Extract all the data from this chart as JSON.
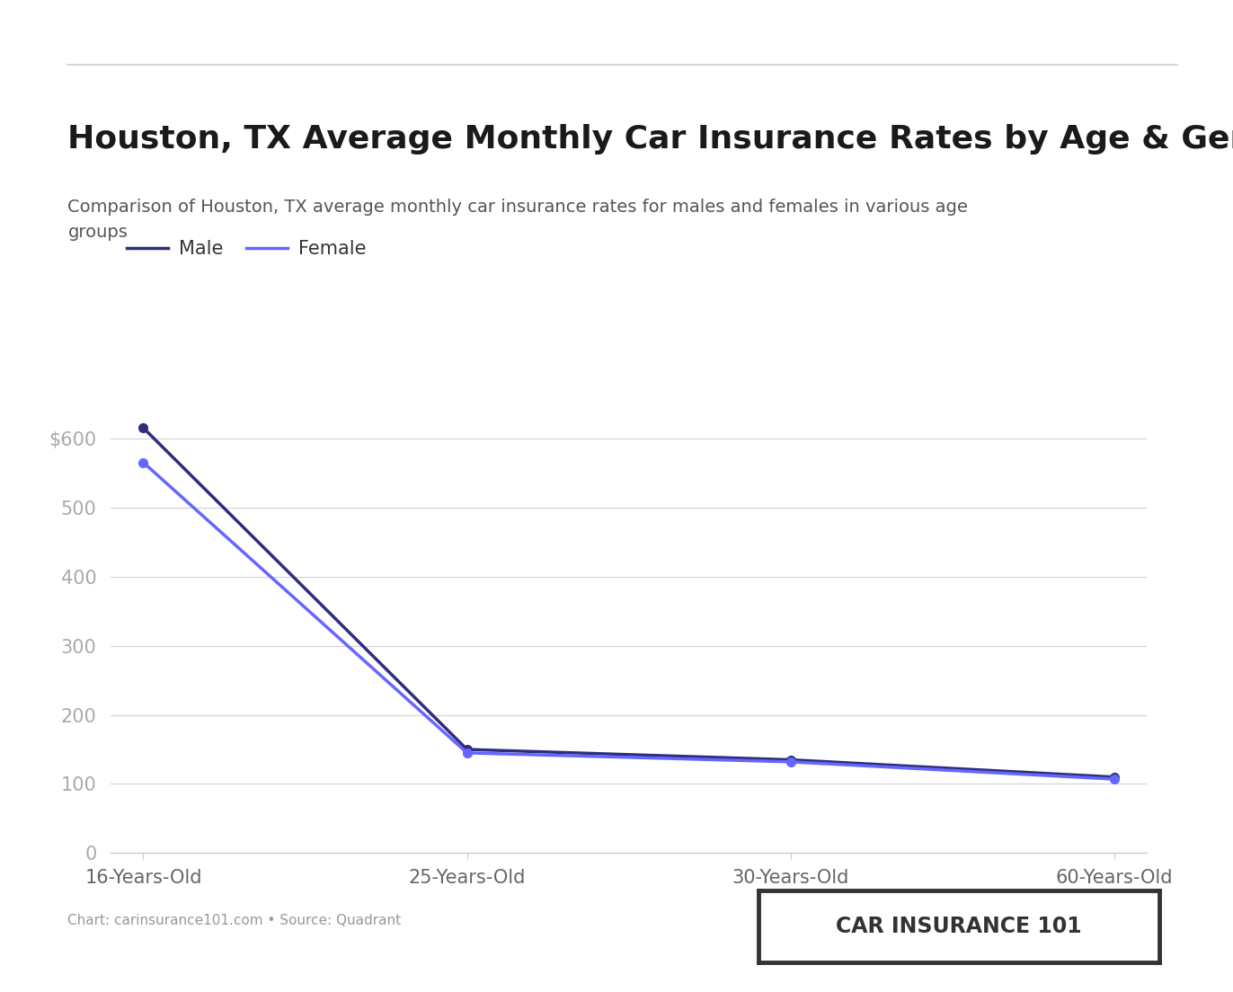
{
  "title": "Houston, TX Average Monthly Car Insurance Rates by Age & Gender",
  "subtitle": "Comparison of Houston, TX average monthly car insurance rates for males and females in various age\ngroups",
  "x_labels": [
    "16-Years-Old",
    "25-Years-Old",
    "30-Years-Old",
    "60-Years-Old"
  ],
  "male_values": [
    615,
    150,
    135,
    110
  ],
  "female_values": [
    565,
    145,
    132,
    107
  ],
  "male_color": "#2d2d7d",
  "female_color": "#6666ff",
  "y_ticks": [
    0,
    100,
    200,
    300,
    400,
    500,
    600
  ],
  "ylim": [
    0,
    660
  ],
  "background_color": "#ffffff",
  "grid_color": "#d0d0d8",
  "footer_text": "Chart: carinsurance101.com • Source: Quadrant",
  "watermark_text": "CAR INSURANCE 101",
  "title_fontsize": 26,
  "subtitle_fontsize": 14,
  "legend_fontsize": 15,
  "tick_fontsize": 15
}
